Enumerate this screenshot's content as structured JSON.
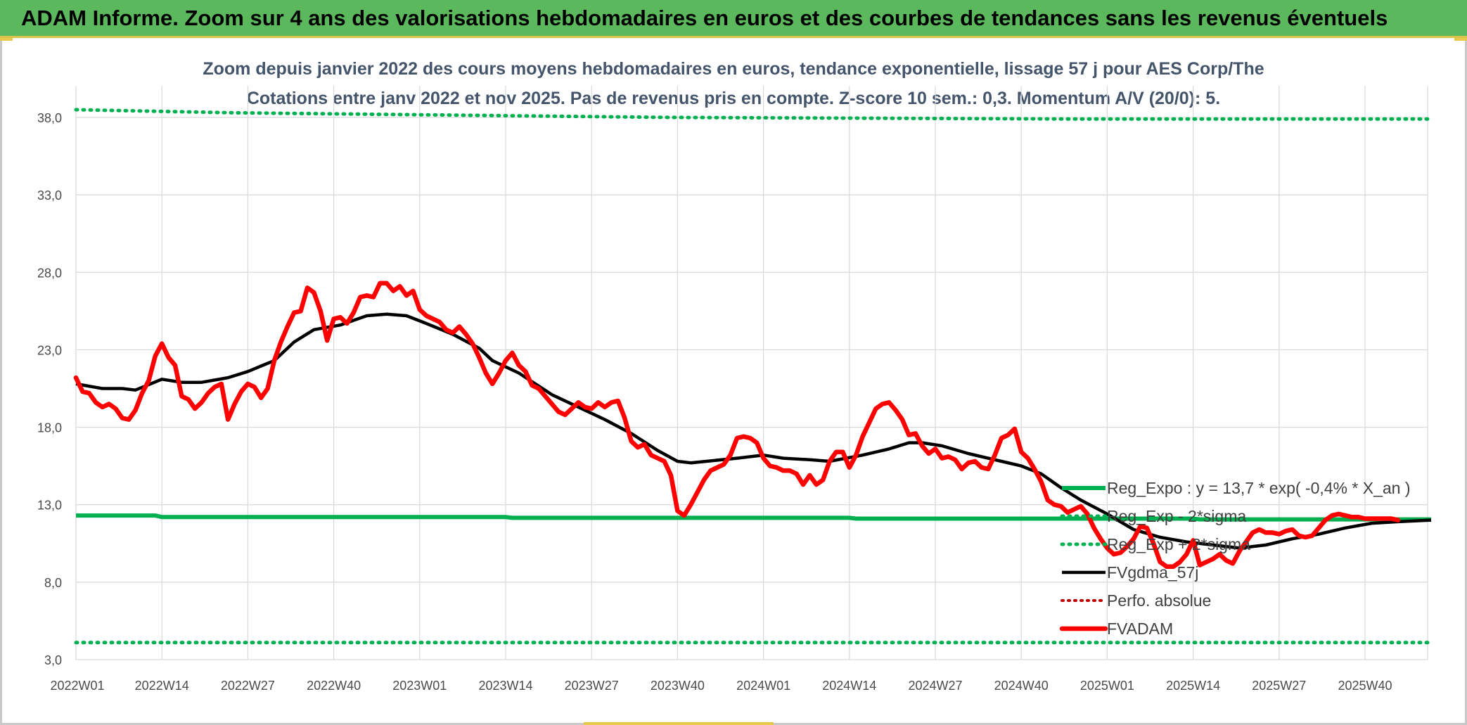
{
  "header": {
    "title": "ADAM Informe. Zoom sur 4 ans des valorisations hebdomadaires en euros et des courbes de tendances sans les revenus éventuels"
  },
  "colors": {
    "banner": "#5cb85c",
    "reg_expo": "#00b050",
    "gdma": "#000000",
    "adam": "#ff0000",
    "perfo": "#c00000",
    "grid": "#d9d9d9"
  },
  "chart_data": {
    "type": "line",
    "title": "Zoom depuis janvier 2022 des cours moyens hebdomadaires en euros, tendance exponentielle, lissage 57 j pour AES Corp/The",
    "subtitle": "Cotations entre janv 2022 et nov 2025. Pas de revenus pris en compte. Z-score 10 sem.: 0,3. Momentum A/V (20/0): 5.",
    "xlabel": "",
    "ylabel": "",
    "ylim": [
      3,
      38
    ],
    "y_ticks": [
      "38,0",
      "33,0",
      "28,0",
      "23,0",
      "18,0",
      "13,0",
      "8,0",
      "3,0"
    ],
    "y_tick_values": [
      38,
      33,
      28,
      23,
      18,
      13,
      8,
      3
    ],
    "x_ticks": [
      "2022W01",
      "2022W14",
      "2022W27",
      "2022W40",
      "2023W01",
      "2023W14",
      "2023W27",
      "2023W40",
      "2024W01",
      "2024W14",
      "2024W27",
      "2024W40",
      "2025W01",
      "2025W14",
      "2025W27",
      "2025W40"
    ],
    "x_tick_weeks": [
      0,
      13,
      26,
      39,
      52,
      65,
      78,
      91,
      104,
      117,
      130,
      143,
      156,
      169,
      182,
      195
    ],
    "n_weeks": 206,
    "grid": true,
    "legend_position": "bottom-right",
    "series": [
      {
        "name": "Reg_Expo : y = 13,7 * exp( -0,4% *  X_an )",
        "style": "solid-green",
        "points": [
          [
            0,
            12.3
          ],
          [
            12,
            12.3
          ],
          [
            13,
            12.2
          ],
          [
            65,
            12.2
          ],
          [
            66,
            12.15
          ],
          [
            117,
            12.15
          ],
          [
            118,
            12.1
          ],
          [
            169,
            12.1
          ],
          [
            170,
            12.05
          ],
          [
            205,
            12.05
          ]
        ]
      },
      {
        "name": "Reg_Exp - 2*sigma",
        "style": "dotted-green",
        "points": [
          [
            0,
            4.1
          ],
          [
            205,
            4.1
          ]
        ]
      },
      {
        "name": "Reg_Exp + 2*sigma",
        "style": "dotted-green",
        "points": [
          [
            0,
            38.5
          ],
          [
            24,
            38.3
          ],
          [
            90,
            38.0
          ],
          [
            150,
            37.9
          ],
          [
            205,
            37.9
          ]
        ]
      },
      {
        "name": "FVgdma_57j",
        "style": "solid-black",
        "points": [
          [
            0,
            20.8
          ],
          [
            4,
            20.5
          ],
          [
            7,
            20.5
          ],
          [
            9,
            20.4
          ],
          [
            13,
            21.1
          ],
          [
            16,
            20.9
          ],
          [
            19,
            20.9
          ],
          [
            23,
            21.2
          ],
          [
            26,
            21.6
          ],
          [
            30,
            22.3
          ],
          [
            33,
            23.5
          ],
          [
            36,
            24.3
          ],
          [
            40,
            24.6
          ],
          [
            44,
            25.2
          ],
          [
            47,
            25.3
          ],
          [
            50,
            25.2
          ],
          [
            53,
            24.7
          ],
          [
            57,
            24.0
          ],
          [
            61,
            23.1
          ],
          [
            63,
            22.3
          ],
          [
            67,
            21.5
          ],
          [
            72,
            20.1
          ],
          [
            76,
            19.3
          ],
          [
            80,
            18.5
          ],
          [
            84,
            17.6
          ],
          [
            88,
            16.5
          ],
          [
            91,
            15.8
          ],
          [
            93,
            15.7
          ],
          [
            100,
            16.0
          ],
          [
            104,
            16.2
          ],
          [
            107,
            16.0
          ],
          [
            111,
            15.9
          ],
          [
            114,
            15.8
          ],
          [
            119,
            16.2
          ],
          [
            123,
            16.6
          ],
          [
            126,
            17.0
          ],
          [
            128,
            17.0
          ],
          [
            131,
            16.8
          ],
          [
            135,
            16.3
          ],
          [
            140,
            15.8
          ],
          [
            143,
            15.5
          ],
          [
            146,
            15.0
          ],
          [
            149,
            14.1
          ],
          [
            152,
            13.3
          ],
          [
            156,
            12.4
          ],
          [
            160,
            11.4
          ],
          [
            164,
            10.9
          ],
          [
            168,
            10.6
          ],
          [
            172,
            10.4
          ],
          [
            176,
            10.2
          ],
          [
            180,
            10.4
          ],
          [
            184,
            10.8
          ],
          [
            188,
            11.1
          ],
          [
            192,
            11.5
          ],
          [
            196,
            11.8
          ],
          [
            200,
            11.9
          ],
          [
            205,
            12.0
          ]
        ]
      },
      {
        "name": "Perfo. absolue",
        "style": "dotted-red",
        "points": []
      },
      {
        "name": "FVADAM",
        "style": "solid-red",
        "points": [
          [
            0,
            21.2
          ],
          [
            1,
            20.3
          ],
          [
            2,
            20.2
          ],
          [
            3,
            19.6
          ],
          [
            4,
            19.3
          ],
          [
            5,
            19.5
          ],
          [
            6,
            19.2
          ],
          [
            7,
            18.6
          ],
          [
            8,
            18.5
          ],
          [
            9,
            19.1
          ],
          [
            10,
            20.2
          ],
          [
            11,
            21.0
          ],
          [
            12,
            22.6
          ],
          [
            13,
            23.4
          ],
          [
            14,
            22.5
          ],
          [
            15,
            22.0
          ],
          [
            16,
            20.0
          ],
          [
            17,
            19.8
          ],
          [
            18,
            19.2
          ],
          [
            19,
            19.6
          ],
          [
            20,
            20.2
          ],
          [
            21,
            20.6
          ],
          [
            22,
            20.8
          ],
          [
            23,
            18.5
          ],
          [
            24,
            19.5
          ],
          [
            25,
            20.3
          ],
          [
            26,
            20.8
          ],
          [
            27,
            20.6
          ],
          [
            28,
            19.9
          ],
          [
            29,
            20.5
          ],
          [
            30,
            22.3
          ],
          [
            31,
            23.5
          ],
          [
            32,
            24.5
          ],
          [
            33,
            25.4
          ],
          [
            34,
            25.5
          ],
          [
            35,
            27.0
          ],
          [
            36,
            26.7
          ],
          [
            37,
            25.5
          ],
          [
            38,
            23.6
          ],
          [
            39,
            25.0
          ],
          [
            40,
            25.1
          ],
          [
            41,
            24.7
          ],
          [
            42,
            25.4
          ],
          [
            43,
            26.4
          ],
          [
            44,
            26.5
          ],
          [
            45,
            26.4
          ],
          [
            46,
            27.3
          ],
          [
            47,
            27.3
          ],
          [
            48,
            26.8
          ],
          [
            49,
            27.1
          ],
          [
            50,
            26.5
          ],
          [
            51,
            26.8
          ],
          [
            52,
            25.6
          ],
          [
            53,
            25.2
          ],
          [
            54,
            25.0
          ],
          [
            55,
            24.8
          ],
          [
            56,
            24.3
          ],
          [
            57,
            24.1
          ],
          [
            58,
            24.5
          ],
          [
            59,
            24.0
          ],
          [
            60,
            23.4
          ],
          [
            61,
            22.5
          ],
          [
            62,
            21.5
          ],
          [
            63,
            20.8
          ],
          [
            64,
            21.5
          ],
          [
            65,
            22.3
          ],
          [
            66,
            22.8
          ],
          [
            67,
            22.0
          ],
          [
            68,
            21.6
          ],
          [
            69,
            20.7
          ],
          [
            70,
            20.5
          ],
          [
            71,
            20.0
          ],
          [
            72,
            19.5
          ],
          [
            73,
            19.0
          ],
          [
            74,
            18.8
          ],
          [
            75,
            19.2
          ],
          [
            76,
            19.6
          ],
          [
            77,
            19.3
          ],
          [
            78,
            19.2
          ],
          [
            79,
            19.6
          ],
          [
            80,
            19.3
          ],
          [
            81,
            19.6
          ],
          [
            82,
            19.7
          ],
          [
            83,
            18.6
          ],
          [
            84,
            17.1
          ],
          [
            85,
            16.7
          ],
          [
            86,
            16.9
          ],
          [
            87,
            16.2
          ],
          [
            88,
            16.0
          ],
          [
            89,
            15.8
          ],
          [
            90,
            14.9
          ],
          [
            91,
            12.6
          ],
          [
            92,
            12.3
          ],
          [
            93,
            13.0
          ],
          [
            94,
            13.8
          ],
          [
            95,
            14.6
          ],
          [
            96,
            15.2
          ],
          [
            97,
            15.4
          ],
          [
            98,
            15.6
          ],
          [
            99,
            16.2
          ],
          [
            100,
            17.3
          ],
          [
            101,
            17.4
          ],
          [
            102,
            17.3
          ],
          [
            103,
            17.0
          ],
          [
            104,
            16.0
          ],
          [
            105,
            15.5
          ],
          [
            106,
            15.4
          ],
          [
            107,
            15.2
          ],
          [
            108,
            15.2
          ],
          [
            109,
            15.0
          ],
          [
            110,
            14.3
          ],
          [
            111,
            14.9
          ],
          [
            112,
            14.3
          ],
          [
            113,
            14.6
          ],
          [
            114,
            15.8
          ],
          [
            115,
            16.4
          ],
          [
            116,
            16.4
          ],
          [
            117,
            15.4
          ],
          [
            118,
            16.2
          ],
          [
            119,
            17.4
          ],
          [
            120,
            18.3
          ],
          [
            121,
            19.2
          ],
          [
            122,
            19.5
          ],
          [
            123,
            19.6
          ],
          [
            124,
            19.1
          ],
          [
            125,
            18.5
          ],
          [
            126,
            17.5
          ],
          [
            127,
            17.6
          ],
          [
            128,
            16.8
          ],
          [
            129,
            16.3
          ],
          [
            130,
            16.6
          ],
          [
            131,
            16.0
          ],
          [
            132,
            16.1
          ],
          [
            133,
            15.9
          ],
          [
            134,
            15.3
          ],
          [
            135,
            15.7
          ],
          [
            136,
            15.8
          ],
          [
            137,
            15.4
          ],
          [
            138,
            15.3
          ],
          [
            139,
            16.2
          ],
          [
            140,
            17.3
          ],
          [
            141,
            17.5
          ],
          [
            142,
            17.9
          ],
          [
            143,
            16.4
          ],
          [
            144,
            16.0
          ],
          [
            145,
            15.3
          ],
          [
            146,
            14.5
          ],
          [
            147,
            13.3
          ],
          [
            148,
            13.0
          ],
          [
            149,
            12.9
          ],
          [
            150,
            12.5
          ],
          [
            151,
            12.7
          ],
          [
            152,
            12.9
          ],
          [
            153,
            12.4
          ],
          [
            154,
            11.5
          ],
          [
            155,
            10.8
          ],
          [
            156,
            10.2
          ],
          [
            157,
            9.8
          ],
          [
            158,
            9.9
          ],
          [
            159,
            10.3
          ],
          [
            160,
            10.8
          ],
          [
            161,
            11.6
          ],
          [
            162,
            11.5
          ],
          [
            163,
            10.5
          ],
          [
            164,
            9.3
          ],
          [
            165,
            9.0
          ],
          [
            166,
            9.0
          ],
          [
            167,
            9.3
          ],
          [
            168,
            9.8
          ],
          [
            169,
            10.7
          ],
          [
            170,
            9.1
          ],
          [
            171,
            9.3
          ],
          [
            172,
            9.5
          ],
          [
            173,
            9.8
          ],
          [
            174,
            9.4
          ],
          [
            175,
            9.2
          ],
          [
            176,
            10.0
          ],
          [
            177,
            10.6
          ],
          [
            178,
            11.2
          ],
          [
            179,
            11.4
          ],
          [
            180,
            11.2
          ],
          [
            181,
            11.2
          ],
          [
            182,
            11.1
          ],
          [
            183,
            11.3
          ],
          [
            184,
            11.4
          ],
          [
            185,
            11.0
          ],
          [
            186,
            10.9
          ],
          [
            187,
            11.0
          ],
          [
            188,
            11.5
          ],
          [
            189,
            12.0
          ],
          [
            190,
            12.3
          ],
          [
            191,
            12.4
          ],
          [
            192,
            12.3
          ],
          [
            193,
            12.2
          ],
          [
            194,
            12.2
          ],
          [
            195,
            12.1
          ],
          [
            196,
            12.1
          ],
          [
            197,
            12.1
          ],
          [
            198,
            12.1
          ],
          [
            199,
            12.1
          ],
          [
            200,
            12.0
          ]
        ]
      }
    ]
  }
}
